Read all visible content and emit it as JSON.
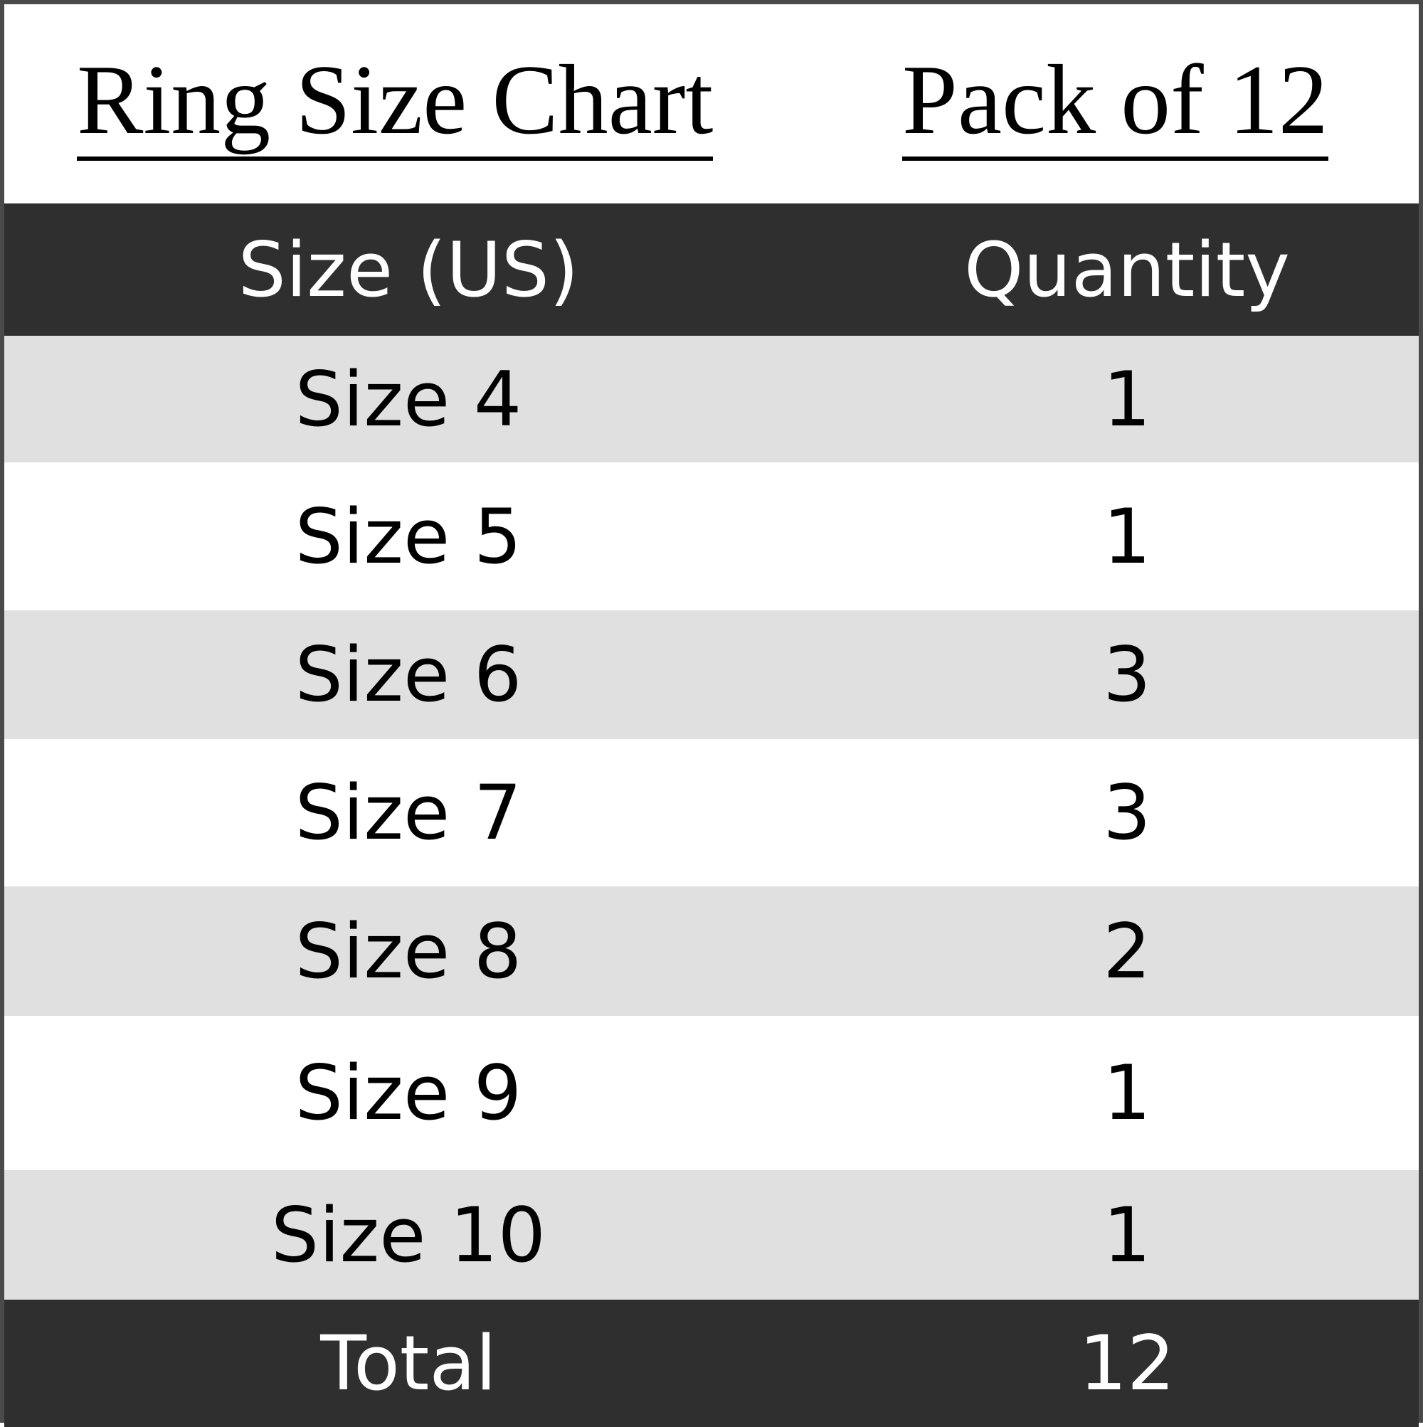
{
  "title": "Ring Size Chart",
  "subtitle": "Pack of 12",
  "colors": {
    "header_bg": "#2f2f2f",
    "stripe": "#e0e0e0",
    "border": "#4a4a4a"
  },
  "table": {
    "headers": [
      "Size (US)",
      "Quantity"
    ],
    "rows": [
      {
        "size": "Size 4",
        "qty": "1"
      },
      {
        "size": "Size 5",
        "qty": "1"
      },
      {
        "size": "Size 6",
        "qty": "3"
      },
      {
        "size": "Size 7",
        "qty": "3"
      },
      {
        "size": "Size 8",
        "qty": "2"
      },
      {
        "size": "Size 9",
        "qty": "1"
      },
      {
        "size": "Size 10",
        "qty": "1"
      }
    ],
    "total_label": "Total",
    "total_value": "12"
  }
}
